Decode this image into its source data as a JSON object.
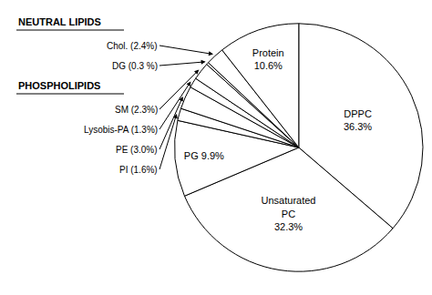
{
  "chart_data": {
    "type": "pie",
    "values": [
      36.3,
      32.3,
      9.9,
      1.6,
      3.0,
      1.3,
      2.3,
      0.3,
      2.4,
      10.6
    ],
    "value_labels": [
      "DPPC\n36.3%",
      "Unsaturated\nPC\n32.3%",
      "PG 9.9%",
      "PI (1.6%)",
      "PE (3.0%)",
      "Lysobis-PA (1.3%)",
      "SM (2.3%)",
      "DG (0.3 %)",
      "Chol. (2.4%)",
      "Protein\n10.6%"
    ],
    "colors": [
      "white",
      "white",
      "white",
      "white",
      "white",
      "white",
      "white",
      "white",
      "white",
      "white"
    ],
    "annotations": [
      "NEUTRAL LIPIDS",
      "PHOSPHOLIPIDS"
    ]
  }
}
